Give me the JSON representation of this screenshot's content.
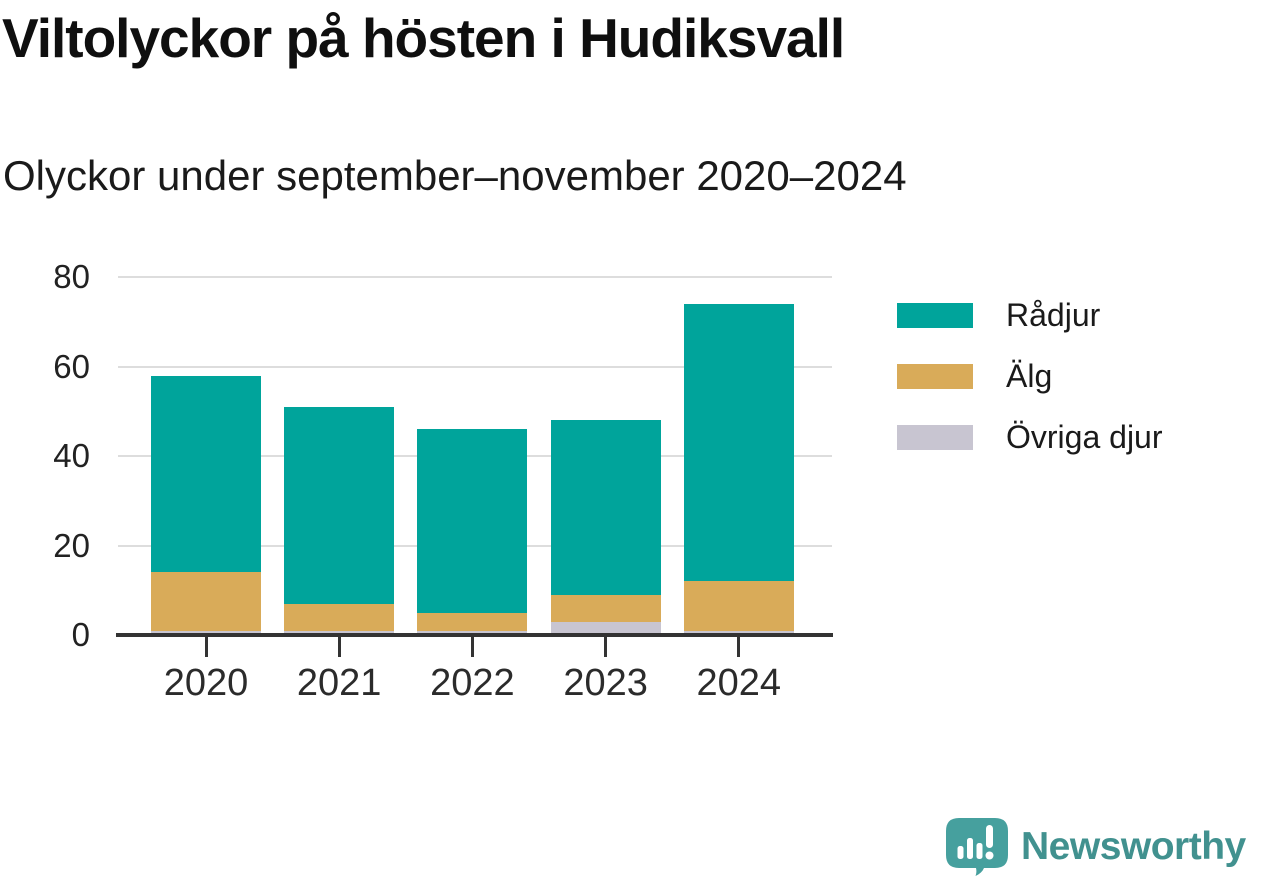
{
  "title": "Viltolyckor på hösten i Hudiksvall",
  "subtitle": "Olyckor under september–november 2020–2024",
  "chart_data": {
    "type": "bar",
    "stacked": true,
    "title": "Viltolyckor på hösten i Hudiksvall",
    "subtitle": "Olyckor under september–november 2020–2024",
    "categories": [
      "2020",
      "2021",
      "2022",
      "2023",
      "2024"
    ],
    "series": [
      {
        "name": "Rådjur",
        "color": "#00a49b",
        "values": [
          44,
          44,
          41,
          39,
          62
        ]
      },
      {
        "name": "Älg",
        "color": "#d9ab59",
        "values": [
          13,
          6,
          4,
          6,
          11
        ]
      },
      {
        "name": "Övriga djur",
        "color": "#c8c5d1",
        "values": [
          1,
          1,
          1,
          3,
          1
        ]
      }
    ],
    "stack_order_bottom_to_top": [
      "Övriga djur",
      "Älg",
      "Rådjur"
    ],
    "totals": [
      58,
      51,
      46,
      48,
      74
    ],
    "ylim": [
      0,
      80
    ],
    "yticks": [
      0,
      20,
      40,
      60,
      80
    ],
    "grid": "horizontal",
    "legend_position": "right"
  },
  "branding": {
    "logo_text": "Newsworthy"
  },
  "colors": {
    "radjur_teal": "#00a49b",
    "alg_gold": "#d9ab59",
    "ovriga_gray": "#c8c5d1",
    "axis": "#333333",
    "gridline": "#dddddd",
    "logo_text_teal": "#41918f",
    "logo_mark_teal": "#46a09e"
  }
}
